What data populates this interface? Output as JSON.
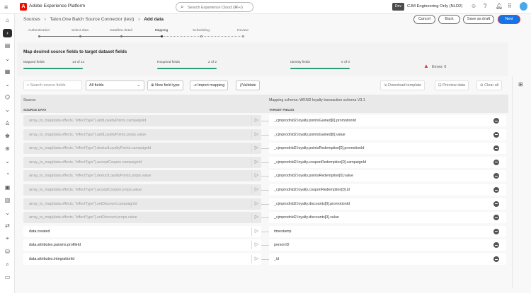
{
  "app": {
    "title": "Adobe Experience Platform",
    "search_placeholder": "Search Experience Cloud (⌘+/)",
    "env_badge": "Dev",
    "org": "CJM Engineering Only (NLD2)"
  },
  "breadcrumb": [
    "Sources",
    "Talon.One Batch Source Connector (test)",
    "Add data"
  ],
  "actions": {
    "cancel": "Cancel",
    "back": "Back",
    "save_draft": "Save as draft",
    "next": "Next"
  },
  "steps": [
    {
      "label": "Authentication",
      "state": "done"
    },
    {
      "label": "Select data",
      "state": "done"
    },
    {
      "label": "Dataflow detail",
      "state": "done"
    },
    {
      "label": "Mapping",
      "state": "current"
    },
    {
      "label": "Scheduling",
      "state": "todo"
    },
    {
      "label": "Review",
      "state": "todo"
    }
  ],
  "summary": {
    "title": "Map desired source fields to target dataset fields",
    "mapped": {
      "label": "Mapped fields",
      "value": "14 of 14",
      "fraction": 1
    },
    "required": {
      "label": "Required fields",
      "value": "2 of 2",
      "fraction": 1
    },
    "identity": {
      "label": "Identity fields",
      "value": "0 of 0",
      "fraction": 1
    },
    "errors": "Errors:  0"
  },
  "toolbar": {
    "search_placeholder": "Search source fields",
    "filter": "All fields",
    "new_field_type": "New field type",
    "import_mapping": "Import mapping",
    "validate": "Validate",
    "download_template": "Download template",
    "preview_data": "Preview data",
    "clear_all": "Clear all"
  },
  "table": {
    "source_label": "Source:",
    "schema_label": "Mapping schema: WKND loyalty transaction schema V3.1",
    "source_header": "SOURCE DATA",
    "target_header": "TARGET FIELDS",
    "rows": [
      {
        "source": "array_to_map(data.effects, \"effectType\").addLoyaltyPoints.campaignId",
        "target": "_cjmprodnld2.loyalty.pointsGained[0].promotionId",
        "disabled": true
      },
      {
        "source": "array_to_map(data.effects, \"effectType\").addLoyaltyPoints.props.value",
        "target": "_cjmprodnld2.loyalty.pointsGained[0].value",
        "disabled": true
      },
      {
        "source": "array_to_map(data.effects, \"effectType\").deductLoyaltyPoints.campaignId",
        "target": "_cjmprodnld2.loyalty.pointsRedemption[0].promotionId",
        "disabled": true
      },
      {
        "source": "array_to_map(data.effects, \"effectType\").acceptCoupon.campaignId",
        "target": "_cjmprodnld2.loyalty.couponRedemption[0].campaignId",
        "disabled": true
      },
      {
        "source": "array_to_map(data.effects, \"effectType\").deductLoyaltyPoints.props.value",
        "target": "_cjmprodnld2.loyalty.pointsRedemption[0].value",
        "disabled": true
      },
      {
        "source": "array_to_map(data.effects, \"effectType\").acceptCoupon.props.value",
        "target": "_cjmprodnld2.loyalty.couponRedemption[0].id",
        "disabled": true
      },
      {
        "source": "array_to_map(data.effects, \"effectType\").setDiscount.campaignId",
        "target": "_cjmprodnld2.loyalty.discounts[0].promotionId",
        "disabled": true
      },
      {
        "source": "array_to_map(data.effects, \"effectType\").setDiscount.props.value",
        "target": "_cjmprodnld2.loyalty.discounts[0].value",
        "disabled": true
      },
      {
        "source": "data.created",
        "target": "timestamp",
        "disabled": false
      },
      {
        "source": "data.attributes.params.profileId",
        "target": "personID",
        "disabled": false
      },
      {
        "source": "data.attributes.integrationId",
        "target": "_id",
        "disabled": false
      }
    ]
  },
  "colors": {
    "accent": "#1473e6",
    "success": "#2d9d78",
    "error": "#d7373f",
    "brand": "#eb1000"
  }
}
